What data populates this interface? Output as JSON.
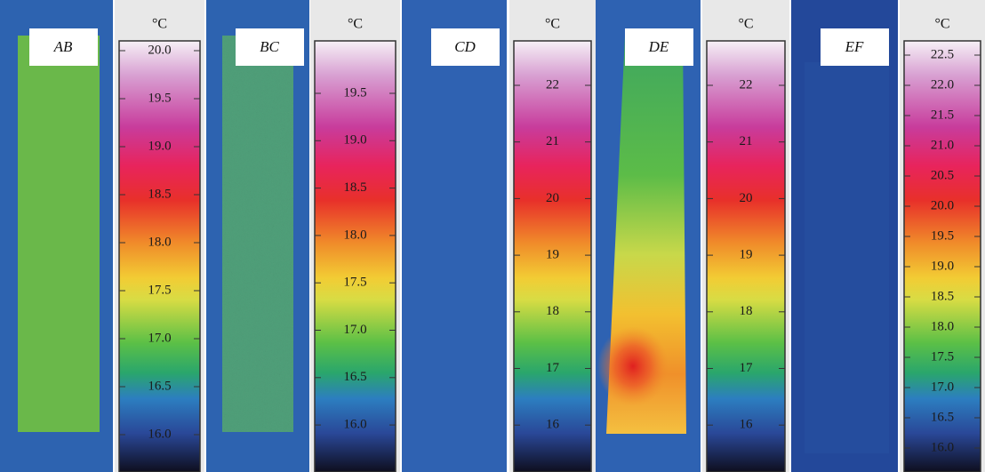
{
  "panels": [
    {
      "label": "AB",
      "unit": "°C",
      "ticks": [
        "20.0",
        "19.5",
        "19.0",
        "18.5",
        "18.0",
        "17.5",
        "17.0",
        "16.5",
        "16.0"
      ]
    },
    {
      "label": "BC",
      "unit": "°C",
      "ticks": [
        "19.5",
        "19.0",
        "18.5",
        "18.0",
        "17.5",
        "17.0",
        "16.5",
        "16.0"
      ]
    },
    {
      "label": "CD",
      "unit": "°C",
      "ticks": [
        "22",
        "21",
        "20",
        "19",
        "18",
        "17",
        "16"
      ]
    },
    {
      "label": "DE",
      "unit": "°C",
      "ticks": [
        "22",
        "21",
        "20",
        "19",
        "18",
        "17",
        "16"
      ]
    },
    {
      "label": "EF",
      "unit": "°C",
      "ticks": [
        "22.5",
        "22.0",
        "21.5",
        "21.0",
        "20.5",
        "20.0",
        "19.5",
        "19.0",
        "18.5",
        "18.0",
        "17.5",
        "17.0",
        "16.5",
        "16.0"
      ]
    }
  ]
}
